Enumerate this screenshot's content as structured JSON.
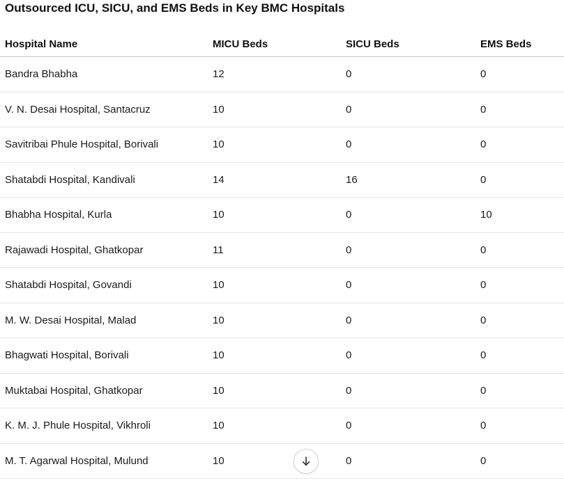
{
  "title": "Outsourced ICU, SICU, and EMS Beds in Key BMC Hospitals",
  "table": {
    "columns": [
      "Hospital Name",
      "MICU Beds",
      "SICU Beds",
      "EMS Beds"
    ],
    "rows": [
      [
        "Bandra Bhabha",
        "12",
        "0",
        "0"
      ],
      [
        "V. N. Desai Hospital, Santacruz",
        "10",
        "0",
        "0"
      ],
      [
        "Savitribai Phule Hospital, Borivali",
        "10",
        "0",
        "0"
      ],
      [
        "Shatabdi Hospital, Kandivali",
        "14",
        "16",
        "0"
      ],
      [
        "Bhabha Hospital, Kurla",
        "10",
        "0",
        "10"
      ],
      [
        "Rajawadi Hospital, Ghatkopar",
        "11",
        "0",
        "0"
      ],
      [
        "Shatabdi Hospital, Govandi",
        "10",
        "0",
        "0"
      ],
      [
        "M. W. Desai Hospital, Malad",
        "10",
        "0",
        "0"
      ],
      [
        "Bhagwati Hospital, Borivali",
        "10",
        "0",
        "0"
      ],
      [
        "Muktabai Hospital, Ghatkopar",
        "10",
        "0",
        "0"
      ],
      [
        "K. M. J. Phule Hospital, Vikhroli",
        "10",
        "0",
        "0"
      ],
      [
        "M. T. Agarwal Hospital, Mulund",
        "10",
        "0",
        "0"
      ]
    ]
  },
  "scroll_button": {
    "icon": "arrow-down-icon"
  }
}
